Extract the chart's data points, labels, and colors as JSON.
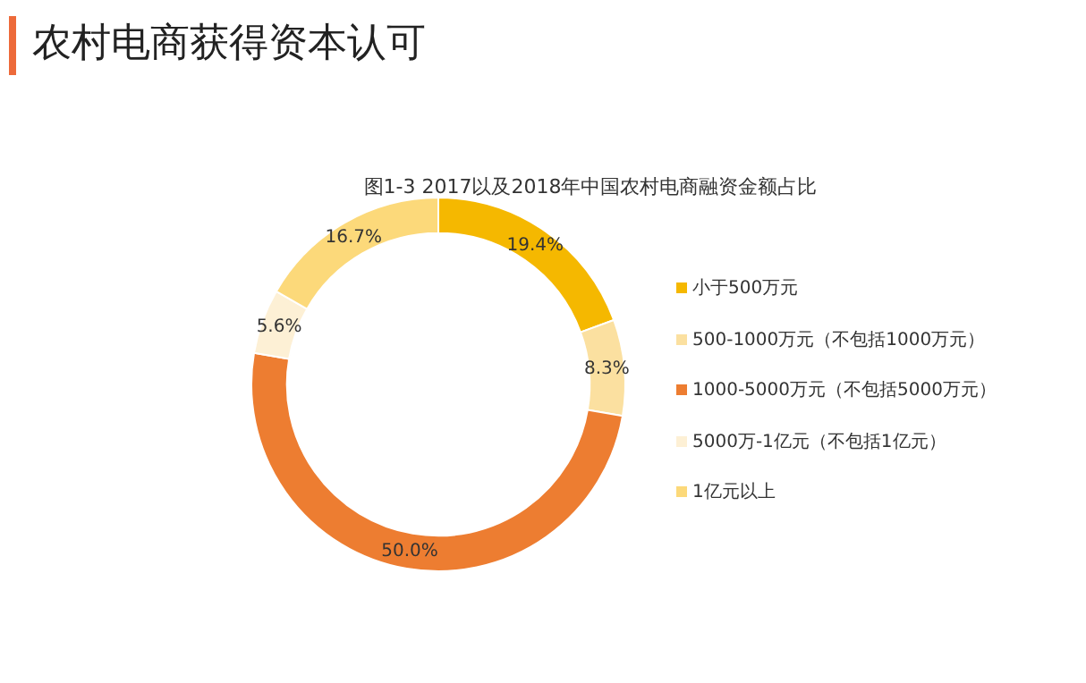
{
  "chart_data": {
    "type": "donut",
    "title": "农村电商获得资本认可",
    "subtitle": "图1-3 2017以及2018年中国农村电商融资金额占比",
    "categories": [
      "小于500万元",
      "500-1000万元（不包括1000万元）",
      "1000-5000万元（不包括5000万元）",
      "5000万-1亿元（不包括1亿元）",
      "1亿元以上"
    ],
    "values": [
      19.4,
      8.3,
      50.0,
      5.6,
      16.7
    ],
    "colors": [
      "#f5b800",
      "#fbe0a0",
      "#ed7d31",
      "#fdf0d5",
      "#fcd97a"
    ],
    "value_labels": [
      "19.4%",
      "8.3%",
      "50.0%",
      "5.6%",
      "16.7%"
    ],
    "legend": "right"
  }
}
